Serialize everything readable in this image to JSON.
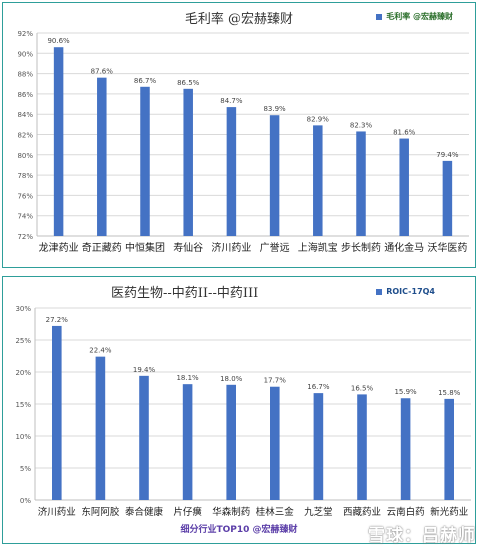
{
  "chart_data": [
    {
      "type": "bar",
      "title": "毛利率 @宏赫臻财",
      "legend": "毛利率 @宏赫臻财",
      "legend_position": "top-right",
      "color": "#4472c4",
      "categories": [
        "龙津药业",
        "奇正藏药",
        "中恒集团",
        "寿仙谷",
        "济川药业",
        "广誉远",
        "上海凯宝",
        "步长制药",
        "通化金马",
        "沃华医药"
      ],
      "values": [
        90.6,
        87.6,
        86.7,
        86.5,
        84.7,
        83.9,
        82.9,
        82.3,
        81.6,
        79.4
      ],
      "data_labels": [
        "90.6%",
        "87.6%",
        "86.7%",
        "86.5%",
        "84.7%",
        "83.9%",
        "82.9%",
        "82.3%",
        "81.6%",
        "79.4%"
      ],
      "ylim": [
        72,
        92
      ],
      "yticks": [
        "72%",
        "74%",
        "76%",
        "78%",
        "80%",
        "82%",
        "84%",
        "86%",
        "88%",
        "90%",
        "92%"
      ],
      "grid": true
    },
    {
      "type": "bar",
      "title": "医药生物--中药II--中药III",
      "legend": "ROIC-17Q4",
      "legend_position": "top-right",
      "color": "#4472c4",
      "categories": [
        "济川药业",
        "东阿阿胶",
        "泰合健康",
        "片仔癀",
        "华森制药",
        "桂林三金",
        "九芝堂",
        "西藏药业",
        "云南白药",
        "新光药业"
      ],
      "values": [
        27.2,
        22.4,
        19.4,
        18.1,
        18.0,
        17.7,
        16.7,
        16.5,
        15.9,
        15.8
      ],
      "data_labels": [
        "27.2%",
        "22.4%",
        "19.4%",
        "18.1%",
        "18.0%",
        "17.7%",
        "16.7%",
        "16.5%",
        "15.9%",
        "15.8%"
      ],
      "ylim": [
        0,
        30
      ],
      "yticks": [
        "0%",
        "5%",
        "10%",
        "15%",
        "20%",
        "25%",
        "30%"
      ],
      "grid": true
    }
  ],
  "footer": "细分行业TOP10 @宏赫臻财",
  "watermark": "雪球：吕赫师"
}
